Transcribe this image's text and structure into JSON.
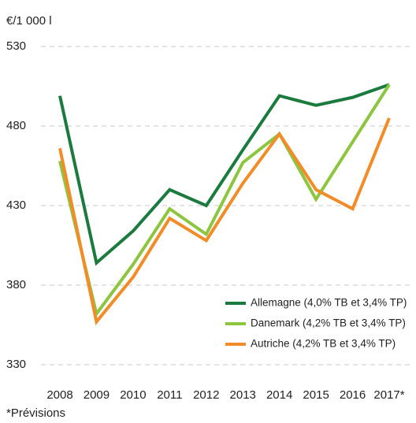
{
  "chart_data": {
    "type": "line",
    "y_label": "€/1 000 l",
    "categories": [
      "2008",
      "2009",
      "2010",
      "2011",
      "2012",
      "2013",
      "2014",
      "2015",
      "2016",
      "2017*"
    ],
    "series": [
      {
        "name": "Allemagne (4,0% TB et 3,4% TP)",
        "color": "#1b7a3e",
        "values": [
          499,
          394,
          414,
          440,
          430,
          465,
          499,
          493,
          498,
          506
        ]
      },
      {
        "name": "Danemark (4,2% TB et 3,4% TP)",
        "color": "#8cc63f",
        "values": [
          458,
          362,
          393,
          428,
          412,
          457,
          475,
          434,
          470,
          506
        ]
      },
      {
        "name": "Autriche (4,2% TB et 3,4% TP)",
        "color": "#f28c28",
        "values": [
          466,
          357,
          385,
          422,
          408,
          444,
          475,
          440,
          428,
          485
        ]
      }
    ],
    "ylim": [
      330,
      530
    ],
    "yticks": [
      330,
      380,
      430,
      480,
      530
    ],
    "grid": true,
    "legend": "lower right",
    "footnote": "*Prévisions"
  }
}
